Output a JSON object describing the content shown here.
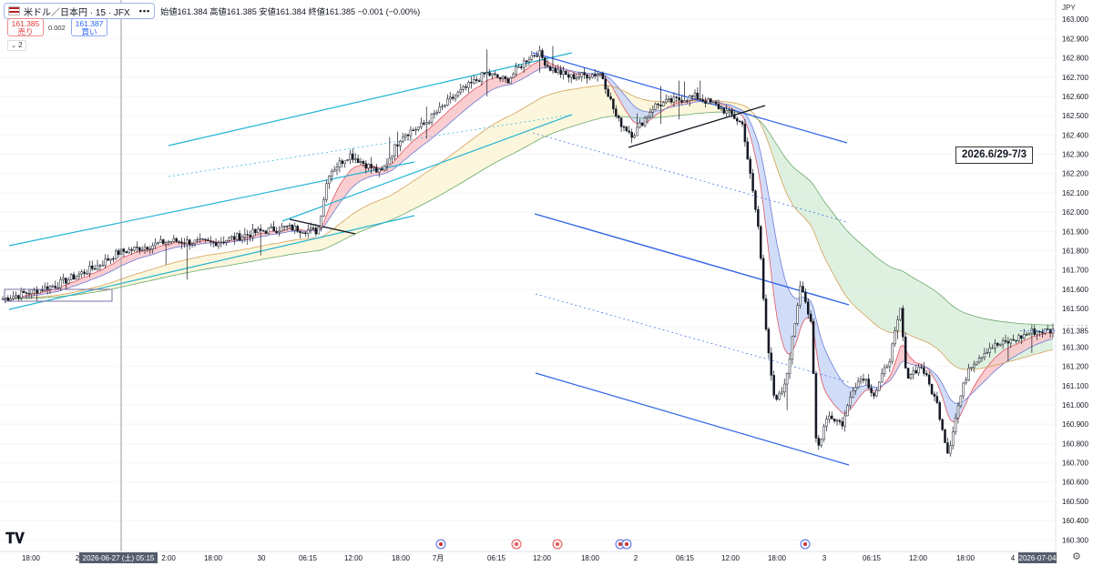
{
  "header": {
    "symbol": "米ドル／日本円 · 15 · JFX",
    "ohlc": "始値161.384 高値161.385 安値161.384 終値161.385 −0.001 (−0.00%)",
    "sell_price": "161.385",
    "sell_label": "売り",
    "buy_price": "161.387",
    "buy_label": "買い",
    "spread": "0.002",
    "indicator_count": "2",
    "menu_dots": "•••",
    "currency": "JPY"
  },
  "annotation": {
    "text": "2026.6/29-7/3"
  },
  "colors": {
    "channel_cyan": "#22b3d4",
    "channel_blue": "#2f63e6",
    "fill_green": "#d8efdc",
    "fill_yellow": "#fcf6d6",
    "fill_red": "#f9c5c8",
    "fill_blue": "#c9d7f7",
    "candle": "#131722",
    "last_price": "#2962ff"
  },
  "icons": [
    "tradingview-logo-icon",
    "us-flag-event-icon",
    "red-event-icon",
    "settings-gear-icon"
  ],
  "chart_data": {
    "type": "candlestick",
    "title": "米ドル／日本円 · 15 · JFX",
    "y_axis": {
      "range": [
        160.24,
        163.1
      ],
      "ticks": [
        "163.000",
        "162.900",
        "162.800",
        "162.700",
        "162.600",
        "162.500",
        "162.400",
        "162.300",
        "162.200",
        "162.100",
        "162.000",
        "161.900",
        "161.800",
        "161.700",
        "161.600",
        "161.500",
        "161.400",
        "161.300",
        "161.200",
        "161.100",
        "161.000",
        "160.900",
        "160.800",
        "160.700",
        "160.600",
        "160.500",
        "160.400",
        "160.300"
      ],
      "last_price": "161.385"
    },
    "x_axis": {
      "ticks": [
        "18:00",
        "2",
        "2026-06-27 (土)  05:15",
        "2:00",
        "18:00",
        "30",
        "06:15",
        "12:00",
        "18:00",
        "7月",
        "06:15",
        "12:00",
        "18:00",
        "2",
        "06:15",
        "12:00",
        "18:00",
        "3",
        "06:15",
        "12:00",
        "18:00",
        "4",
        "2026-07-04"
      ],
      "crosshair_label": "2026-06-27 (土)  05:15",
      "end_label": "2026-07-04"
    },
    "price_path": [
      [
        0,
        161.55
      ],
      [
        0.05,
        161.62
      ],
      [
        0.09,
        161.72
      ],
      [
        0.11,
        161.79
      ],
      [
        0.16,
        161.85
      ],
      [
        0.2,
        161.84
      ],
      [
        0.245,
        161.9
      ],
      [
        0.27,
        161.92
      ],
      [
        0.3,
        161.9
      ],
      [
        0.31,
        162.2
      ],
      [
        0.33,
        162.3
      ],
      [
        0.36,
        162.2
      ],
      [
        0.38,
        162.4
      ],
      [
        0.4,
        162.45
      ],
      [
        0.43,
        162.6
      ],
      [
        0.46,
        162.72
      ],
      [
        0.48,
        162.68
      ],
      [
        0.5,
        162.8
      ],
      [
        0.51,
        162.83
      ],
      [
        0.52,
        162.75
      ],
      [
        0.54,
        162.7
      ],
      [
        0.57,
        162.72
      ],
      [
        0.585,
        162.48
      ],
      [
        0.6,
        162.4
      ],
      [
        0.62,
        162.55
      ],
      [
        0.64,
        162.58
      ],
      [
        0.66,
        162.6
      ],
      [
        0.68,
        162.55
      ],
      [
        0.695,
        162.5
      ],
      [
        0.705,
        162.45
      ],
      [
        0.71,
        162.25
      ],
      [
        0.72,
        161.9
      ],
      [
        0.725,
        161.5
      ],
      [
        0.735,
        161.0
      ],
      [
        0.745,
        161.1
      ],
      [
        0.755,
        161.45
      ],
      [
        0.76,
        161.65
      ],
      [
        0.77,
        161.4
      ],
      [
        0.775,
        160.75
      ],
      [
        0.785,
        160.95
      ],
      [
        0.8,
        160.9
      ],
      [
        0.81,
        161.1
      ],
      [
        0.82,
        161.15
      ],
      [
        0.83,
        161.05
      ],
      [
        0.845,
        161.25
      ],
      [
        0.855,
        161.5
      ],
      [
        0.86,
        161.15
      ],
      [
        0.875,
        161.2
      ],
      [
        0.89,
        161.0
      ],
      [
        0.9,
        160.75
      ],
      [
        0.91,
        161.0
      ],
      [
        0.92,
        161.2
      ],
      [
        0.94,
        161.3
      ],
      [
        0.96,
        161.33
      ],
      [
        0.98,
        161.38
      ],
      [
        1.0,
        161.385
      ]
    ],
    "moving_averages": [
      "short",
      "medium",
      "long"
    ]
  }
}
